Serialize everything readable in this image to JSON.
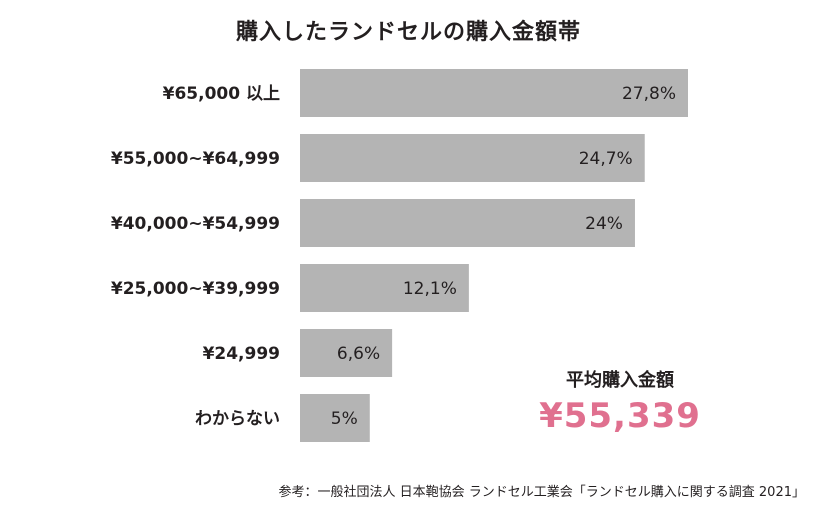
{
  "chart_data": {
    "type": "bar",
    "orientation": "horizontal",
    "title": "購入したランドセルの購入金額帯",
    "categories": [
      "¥65,000 以上",
      "¥55,000~¥64,999",
      "¥40,000~¥54,999",
      "¥25,000~¥39,999",
      "¥24,999",
      "わからない"
    ],
    "values": [
      27.8,
      24.7,
      24,
      12.1,
      6.6,
      5
    ],
    "value_labels": [
      "27,8%",
      "24,7%",
      "24%",
      "12,1%",
      "6,6%",
      "5%"
    ],
    "xlim": [
      0,
      27.8
    ],
    "grid": false,
    "legend": "none"
  },
  "summary": {
    "label": "平均購入金額",
    "value": "¥55,339"
  },
  "source": "参考：一般社団法人 日本鞄協会 ランドセル工業会「ランドセル購入に関する調査 2021」",
  "colors": {
    "bar": "#b4b4b4",
    "text": "#231f20",
    "accent": "#e0708f"
  }
}
